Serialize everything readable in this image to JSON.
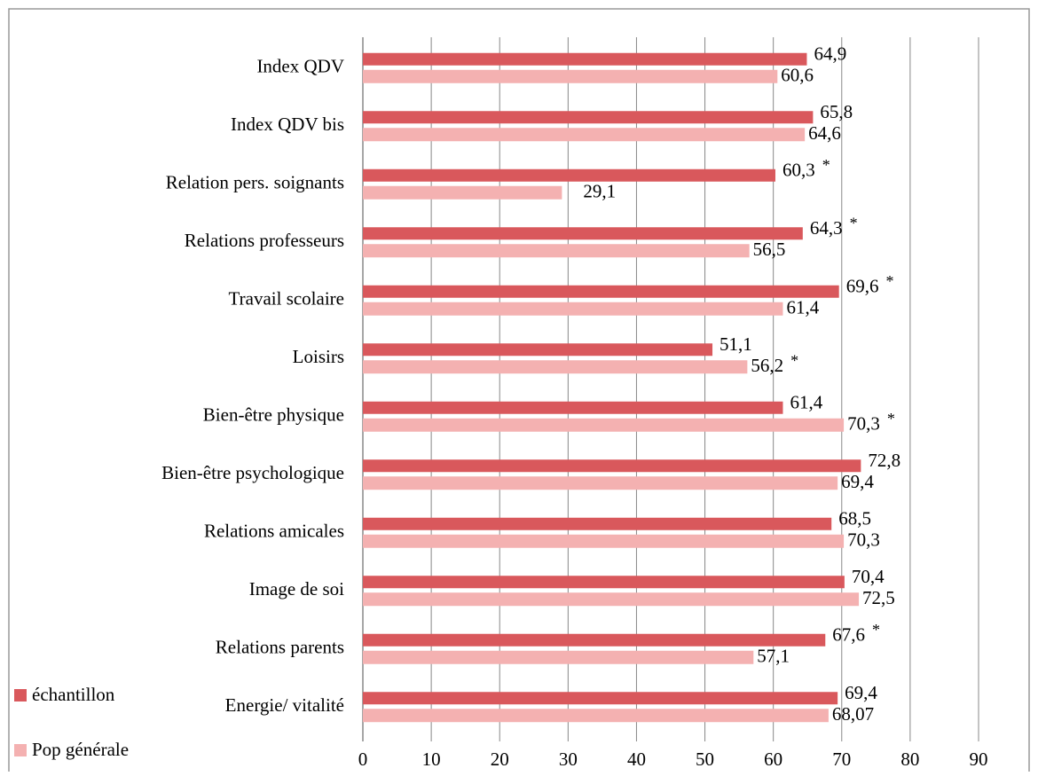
{
  "chart_data": {
    "type": "bar",
    "orientation": "horizontal",
    "categories": [
      "Index QDV",
      "Index QDV bis",
      "Relation pers. soignants",
      "Relations professeurs",
      "Travail scolaire",
      "Loisirs",
      "Bien-être physique",
      "Bien-être psychologique",
      "Relations amicales",
      "Image de soi",
      "Relations parents",
      "Energie/ vitalité"
    ],
    "series": [
      {
        "name": "échantillon",
        "color": "#d9585c",
        "values": [
          64.9,
          65.8,
          60.3,
          64.3,
          69.6,
          51.1,
          61.4,
          72.8,
          68.5,
          70.4,
          67.6,
          69.4
        ],
        "value_labels": [
          "64,9",
          "65,8",
          "60,3",
          "64,3",
          "69,6",
          "51,1",
          "61,4",
          "72,8",
          "68,5",
          "70,4",
          "67,6",
          "69,4"
        ]
      },
      {
        "name": "Pop générale",
        "color": "#f4b1b1",
        "values": [
          60.6,
          64.6,
          29.1,
          56.5,
          61.4,
          56.2,
          70.3,
          69.4,
          70.3,
          72.5,
          57.1,
          68.07
        ],
        "value_labels": [
          "60,6",
          "64,6",
          "29,1",
          "56,5",
          "61,4",
          "56,2",
          "70,3",
          "69,4",
          "70,3",
          "72,5",
          "57,1",
          "68,07"
        ]
      }
    ],
    "annotations": [
      {
        "text": "*",
        "category": "Relation pers. soignants",
        "series": "échantillon"
      },
      {
        "text": "*",
        "category": "Relations professeurs",
        "series": "échantillon"
      },
      {
        "text": "*",
        "category": "Travail scolaire",
        "series": "échantillon"
      },
      {
        "text": "*",
        "category": "Loisirs",
        "series": "Pop générale"
      },
      {
        "text": "*",
        "category": "Bien-être physique",
        "series": "Pop générale"
      },
      {
        "text": "*",
        "category": "Relations parents",
        "series": "échantillon"
      }
    ],
    "xlim": [
      0,
      90
    ],
    "xticks": [
      0,
      10,
      20,
      30,
      40,
      50,
      60,
      70,
      80,
      90
    ],
    "grid": true,
    "legend": "bottom-left"
  }
}
